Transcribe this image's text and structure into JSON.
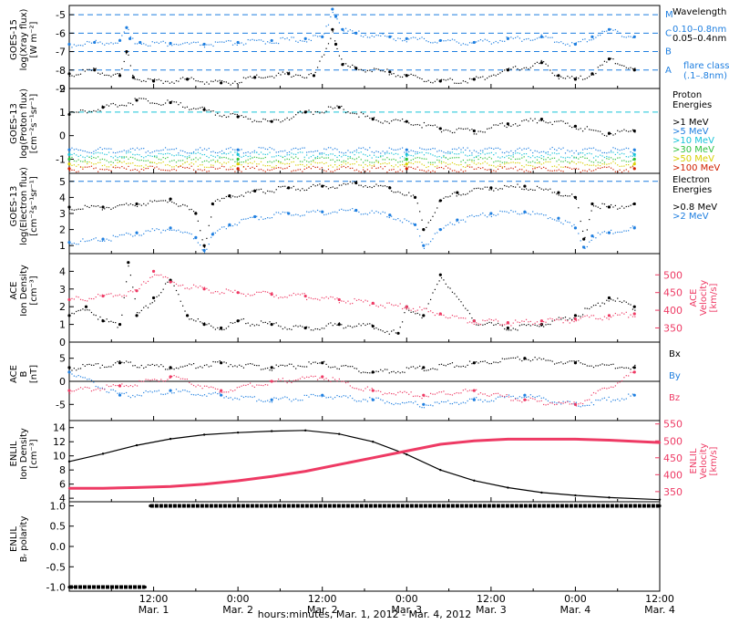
{
  "figure": {
    "x_axis_title": "hours:minutes, Mar.  1, 2012 - Mar.  4, 2012",
    "x_ticks": [
      {
        "t": 0.5,
        "time": "12:00",
        "date": "Mar. 1"
      },
      {
        "t": 1.0,
        "time": "0:00",
        "date": "Mar. 2"
      },
      {
        "t": 1.5,
        "time": "12:00",
        "date": "Mar. 2"
      },
      {
        "t": 2.0,
        "time": "0:00",
        "date": "Mar. 3"
      },
      {
        "t": 2.5,
        "time": "12:00",
        "date": "Mar. 3"
      },
      {
        "t": 3.0,
        "time": "0:00",
        "date": "Mar. 4"
      },
      {
        "t": 3.5,
        "time": "12:00",
        "date": "Mar. 4"
      }
    ],
    "colors": {
      "black": "#000000",
      "blue": "#1f7fe0",
      "cyan": "#17c3d8",
      "red": "#ee3a64",
      "green": "#30c040",
      "yellow": "#d8d000",
      "orange": "#f08000",
      "darkred": "#d02000"
    }
  },
  "chart_data": [
    {
      "type": "scatter",
      "title": "",
      "ylabel": "GOES-15 log(Xray flux) [W m-2]",
      "ylabel_lines": [
        "GOES-15",
        "log(Xray flux)",
        "[W m⁻²]"
      ],
      "ylim": [
        -9,
        -4.5
      ],
      "yticks": [
        -5,
        -6,
        -7,
        -8,
        -9
      ],
      "threshold_lines": [
        {
          "y": -5,
          "label": "M"
        },
        {
          "y": -6,
          "label": "C"
        },
        {
          "y": -7,
          "label": "B"
        },
        {
          "y": -8,
          "label": "A"
        }
      ],
      "legend": {
        "title": "Wavelength",
        "entries": [
          {
            "label": "0.10–0.8nm",
            "color": "#1f7fe0"
          },
          {
            "label": "0.05–0.4nm",
            "color": "#000000"
          }
        ],
        "note": [
          "flare class",
          "(.1–.8nm)"
        ]
      },
      "series": [
        {
          "name": "0.10–0.8nm",
          "color": "#1f7fe0",
          "x": [
            0,
            0.15,
            0.3,
            0.34,
            0.36,
            0.42,
            0.6,
            0.8,
            1.0,
            1.2,
            1.4,
            1.5,
            1.56,
            1.58,
            1.62,
            1.7,
            1.9,
            2.0,
            2.2,
            2.4,
            2.6,
            2.8,
            3.0,
            3.1,
            3.2,
            3.35
          ],
          "y": [
            -6.6,
            -6.5,
            -6.4,
            -5.7,
            -6.3,
            -6.5,
            -6.55,
            -6.6,
            -6.5,
            -6.4,
            -6.3,
            -6.2,
            -4.7,
            -5.1,
            -5.8,
            -6.0,
            -6.2,
            -6.3,
            -6.4,
            -6.5,
            -6.3,
            -6.2,
            -6.6,
            -6.2,
            -5.8,
            -6.2
          ]
        },
        {
          "name": "0.05–0.4nm",
          "color": "#000000",
          "x": [
            0,
            0.15,
            0.3,
            0.34,
            0.38,
            0.5,
            0.7,
            0.9,
            1.1,
            1.3,
            1.45,
            1.56,
            1.58,
            1.62,
            1.7,
            1.9,
            2.0,
            2.2,
            2.4,
            2.6,
            2.8,
            2.9,
            3.0,
            3.1,
            3.2,
            3.35
          ],
          "y": [
            -8.2,
            -8.0,
            -8.3,
            -7.0,
            -8.4,
            -8.6,
            -8.5,
            -8.7,
            -8.4,
            -8.2,
            -8.3,
            -5.8,
            -6.6,
            -7.7,
            -7.9,
            -8.1,
            -8.3,
            -8.6,
            -8.5,
            -8.0,
            -7.6,
            -8.3,
            -8.5,
            -8.2,
            -7.4,
            -8.0
          ]
        }
      ]
    },
    {
      "type": "scatter",
      "title": "",
      "ylabel": "GOES-13 log(Proton flux) [cm-2 s-1 sr-1]",
      "ylabel_lines": [
        "GOES-13",
        "log(Proton flux)",
        "[cm⁻²s⁻¹sr⁻¹]"
      ],
      "ylim": [
        -1.6,
        2
      ],
      "yticks": [
        2,
        1,
        0,
        -1
      ],
      "threshold_lines": [
        {
          "y": 1
        }
      ],
      "legend": {
        "title": "Proton Energies",
        "entries": [
          {
            "label": ">1 MeV",
            "color": "#000000"
          },
          {
            "label": ">5 MeV",
            "color": "#1f7fe0"
          },
          {
            "label": ">10 MeV",
            "color": "#17c3d8"
          },
          {
            "label": ">30 MeV",
            "color": "#30c040"
          },
          {
            "label": ">50 MeV",
            "color": "#d8d000"
          },
          {
            "label": ">100 MeV",
            "color": "#d02000"
          }
        ]
      },
      "series": [
        {
          "name": ">1 MeV",
          "color": "#000000",
          "x": [
            0,
            0.2,
            0.4,
            0.6,
            0.8,
            1.0,
            1.2,
            1.4,
            1.6,
            1.8,
            2.0,
            2.2,
            2.4,
            2.6,
            2.8,
            3.0,
            3.2,
            3.35
          ],
          "y": [
            0.9,
            1.2,
            1.5,
            1.4,
            1.1,
            0.8,
            0.6,
            1.0,
            1.2,
            0.7,
            0.6,
            0.3,
            0.2,
            0.5,
            0.7,
            0.4,
            0.1,
            0.2
          ]
        },
        {
          "name": ">5 MeV",
          "color": "#1f7fe0",
          "x": [
            0,
            1.0,
            2.0,
            3.35
          ],
          "y": [
            -0.6,
            -0.6,
            -0.6,
            -0.6
          ]
        },
        {
          "name": ">10 MeV",
          "color": "#17c3d8",
          "x": [
            0,
            1.0,
            2.0,
            3.35
          ],
          "y": [
            -0.8,
            -0.8,
            -0.8,
            -0.8
          ]
        },
        {
          "name": ">30 MeV",
          "color": "#30c040",
          "x": [
            0,
            1.0,
            2.0,
            3.35
          ],
          "y": [
            -1.0,
            -1.0,
            -1.0,
            -1.0
          ]
        },
        {
          "name": ">50 MeV",
          "color": "#d8d000",
          "x": [
            0,
            1.0,
            2.0,
            3.35
          ],
          "y": [
            -1.2,
            -1.2,
            -1.2,
            -1.2
          ]
        },
        {
          "name": ">100 MeV",
          "color": "#d02000",
          "x": [
            0,
            1.0,
            2.0,
            3.35
          ],
          "y": [
            -1.4,
            -1.4,
            -1.4,
            -1.4
          ]
        }
      ]
    },
    {
      "type": "scatter",
      "title": "",
      "ylabel": "GOES-13 log(Electron flux) [cm-2 s-1 sr-1]",
      "ylabel_lines": [
        "GOES-13",
        "log(Electron flux)",
        "[cm⁻²s⁻¹sr⁻¹]"
      ],
      "ylim": [
        0.5,
        5.5
      ],
      "yticks": [
        5,
        4,
        3,
        2,
        1
      ],
      "threshold_lines": [
        {
          "y": 5
        }
      ],
      "legend": {
        "title": "Electron Energies",
        "entries": [
          {
            "label": ">0.8 MeV",
            "color": "#000000"
          },
          {
            "label": ">2 MeV",
            "color": "#1f7fe0"
          }
        ]
      },
      "series": [
        {
          "name": ">0.8 MeV",
          "color": "#000000",
          "x": [
            0,
            0.2,
            0.4,
            0.6,
            0.75,
            0.8,
            0.85,
            0.95,
            1.1,
            1.3,
            1.5,
            1.7,
            1.9,
            2.05,
            2.1,
            2.2,
            2.3,
            2.5,
            2.7,
            2.9,
            3.0,
            3.05,
            3.1,
            3.2,
            3.35
          ],
          "y": [
            3.4,
            3.4,
            3.6,
            3.9,
            3.0,
            1.0,
            3.6,
            4.1,
            4.4,
            4.6,
            4.7,
            4.9,
            4.6,
            4.0,
            2.0,
            3.8,
            4.3,
            4.6,
            4.7,
            4.3,
            4.0,
            1.4,
            3.6,
            3.4,
            3.6
          ]
        },
        {
          "name": ">2 MeV",
          "color": "#1f7fe0",
          "x": [
            0,
            0.2,
            0.4,
            0.6,
            0.75,
            0.8,
            0.85,
            0.95,
            1.1,
            1.3,
            1.5,
            1.7,
            1.9,
            2.05,
            2.1,
            2.2,
            2.3,
            2.5,
            2.7,
            2.9,
            3.0,
            3.05,
            3.1,
            3.2,
            3.35
          ],
          "y": [
            1.2,
            1.4,
            1.8,
            2.1,
            1.5,
            0.7,
            1.7,
            2.3,
            2.8,
            3.0,
            3.1,
            3.2,
            2.9,
            2.3,
            1.0,
            2.0,
            2.6,
            3.0,
            3.1,
            2.7,
            2.1,
            0.9,
            1.6,
            1.8,
            2.1
          ]
        }
      ]
    },
    {
      "type": "scatter",
      "title": "",
      "ylabel": "ACE Ion Density [cm-3]",
      "ylabel_lines": [
        "ACE",
        "Ion Density",
        "[cm⁻³]"
      ],
      "ylabel_right": "ACE Velocity [km/s]",
      "ylabel_right_lines": [
        "ACE",
        "Velocity",
        "[km/s]"
      ],
      "ylim": [
        0,
        5
      ],
      "yticks": [
        0,
        1,
        2,
        3,
        4
      ],
      "ylim_right": [
        310,
        560
      ],
      "yticks_right": [
        350,
        400,
        450,
        500
      ],
      "series": [
        {
          "name": "Ion Density",
          "color": "#000000",
          "axis": "left",
          "x": [
            0,
            0.1,
            0.2,
            0.3,
            0.35,
            0.4,
            0.5,
            0.6,
            0.7,
            0.8,
            0.9,
            1.0,
            1.2,
            1.4,
            1.6,
            1.8,
            1.95,
            2.0,
            2.1,
            2.2,
            2.4,
            2.6,
            2.8,
            3.0,
            3.2,
            3.35
          ],
          "y": [
            1.5,
            2.0,
            1.2,
            1.0,
            4.5,
            1.5,
            2.5,
            3.5,
            1.5,
            1.0,
            0.8,
            1.2,
            1.0,
            0.8,
            1.0,
            0.9,
            0.5,
            2.0,
            1.5,
            3.8,
            1.2,
            0.8,
            1.0,
            1.5,
            2.5,
            2.0
          ]
        },
        {
          "name": "Velocity",
          "color": "#ee3a64",
          "axis": "right",
          "x": [
            0,
            0.2,
            0.4,
            0.5,
            0.6,
            0.8,
            1.0,
            1.2,
            1.4,
            1.6,
            1.8,
            2.0,
            2.2,
            2.4,
            2.6,
            2.8,
            3.0,
            3.2,
            3.35
          ],
          "y": [
            430,
            440,
            455,
            510,
            480,
            460,
            450,
            445,
            440,
            430,
            420,
            410,
            390,
            370,
            365,
            370,
            375,
            385,
            390
          ]
        }
      ]
    },
    {
      "type": "scatter",
      "title": "",
      "ylabel": "ACE B [nT]",
      "ylabel_lines": [
        "ACE",
        "B",
        "[nT]"
      ],
      "ylim": [
        -8.5,
        8.5
      ],
      "yticks": [
        5,
        0,
        -5
      ],
      "zero_line": true,
      "legend": {
        "entries": [
          {
            "label": "Bx",
            "color": "#000000"
          },
          {
            "label": "By",
            "color": "#1f7fe0"
          },
          {
            "label": "Bz",
            "color": "#ee3a64"
          }
        ]
      },
      "series": [
        {
          "name": "Bx",
          "color": "#000000",
          "x": [
            0,
            0.3,
            0.6,
            0.9,
            1.2,
            1.5,
            1.8,
            2.1,
            2.4,
            2.7,
            3.0,
            3.35
          ],
          "y": [
            3,
            4,
            3,
            4,
            3,
            4,
            2,
            3,
            4,
            5,
            4,
            3
          ]
        },
        {
          "name": "By",
          "color": "#1f7fe0",
          "x": [
            0,
            0.3,
            0.6,
            0.9,
            1.2,
            1.5,
            1.8,
            2.1,
            2.4,
            2.7,
            3.0,
            3.35
          ],
          "y": [
            2,
            -3,
            -2,
            -3,
            -4,
            -3,
            -4,
            -5,
            -4,
            -3,
            -5,
            -3
          ]
        },
        {
          "name": "Bz",
          "color": "#ee3a64",
          "x": [
            0,
            0.3,
            0.6,
            0.9,
            1.2,
            1.5,
            1.8,
            2.1,
            2.4,
            2.7,
            3.0,
            3.35
          ],
          "y": [
            -2,
            -1,
            1,
            -2,
            0,
            1,
            -2,
            -3,
            -2,
            -4,
            -5,
            2
          ]
        }
      ]
    },
    {
      "type": "line",
      "title": "",
      "ylabel": "ENLIL Ion Density [cm-3]",
      "ylabel_lines": [
        "ENLIL",
        "Ion Density",
        "[cm⁻³]"
      ],
      "ylabel_right": "ENLIL Velocity [km/s]",
      "ylabel_right_lines": [
        "ENLIL",
        "Velocity",
        "[km/s]"
      ],
      "ylim": [
        3.5,
        15
      ],
      "yticks": [
        4,
        6,
        8,
        10,
        12,
        14
      ],
      "ylim_right": [
        320,
        560
      ],
      "yticks_right": [
        350,
        400,
        450,
        500,
        550
      ],
      "series": [
        {
          "name": "Ion Density",
          "color": "#000000",
          "axis": "left",
          "x": [
            0,
            0.2,
            0.4,
            0.6,
            0.8,
            1.0,
            1.2,
            1.4,
            1.6,
            1.8,
            2.0,
            2.2,
            2.4,
            2.6,
            2.8,
            3.0,
            3.2,
            3.5
          ],
          "y": [
            9.2,
            10.3,
            11.5,
            12.4,
            13.0,
            13.3,
            13.5,
            13.6,
            13.1,
            12.0,
            10.2,
            8.0,
            6.5,
            5.5,
            4.8,
            4.4,
            4.1,
            3.8
          ]
        },
        {
          "name": "Velocity",
          "color": "#ee3a64",
          "axis": "right",
          "x": [
            0,
            0.2,
            0.4,
            0.6,
            0.8,
            1.0,
            1.2,
            1.4,
            1.6,
            1.8,
            2.0,
            2.2,
            2.4,
            2.6,
            2.8,
            3.0,
            3.2,
            3.5
          ],
          "y": [
            360,
            360,
            362,
            365,
            372,
            382,
            395,
            410,
            430,
            450,
            470,
            490,
            500,
            505,
            505,
            505,
            502,
            495
          ]
        }
      ]
    },
    {
      "type": "scatter",
      "title": "",
      "ylabel": "ENLIL Br polarity",
      "ylabel_lines": [
        "ENLIL",
        "Bᵣ polarity"
      ],
      "ylim": [
        -1.1,
        1.1
      ],
      "yticks": [
        1.0,
        0.5,
        0.0,
        -0.5,
        -1.0
      ],
      "ytick_labels": [
        "1.0",
        "0.5",
        "0.0",
        "-0.5",
        "-1.0"
      ],
      "series": [
        {
          "name": "Polarity",
          "color": "#000000",
          "x": [
            0,
            0.45,
            0.48,
            3.5
          ],
          "y": [
            -1,
            -1,
            1,
            1
          ]
        }
      ]
    }
  ]
}
